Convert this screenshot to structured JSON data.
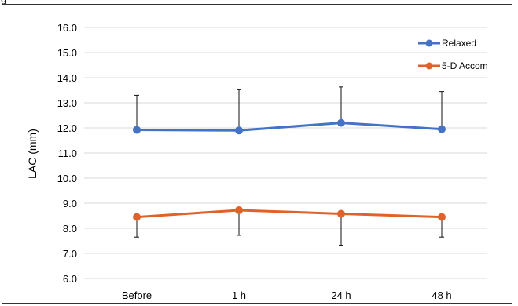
{
  "header": {
    "fragment": "g"
  },
  "chart_data": {
    "type": "line",
    "title": "",
    "xlabel": "",
    "ylabel": "LAC  (mm)",
    "categories": [
      "Before",
      "1 h",
      "24 h",
      "48 h"
    ],
    "ylim": [
      6.0,
      16.0
    ],
    "yticks": [
      "6.0",
      "7.0",
      "8.0",
      "9.0",
      "10.0",
      "11.0",
      "12.0",
      "13.0",
      "14.0",
      "15.0",
      "16.0"
    ],
    "grid": true,
    "legend_position": "top-right",
    "series": [
      {
        "name": "Relaxed",
        "color": "#4472c4",
        "values": [
          11.92,
          11.9,
          12.2,
          11.95
        ],
        "error": [
          1.38,
          1.62,
          1.43,
          1.5
        ]
      },
      {
        "name": "5-D Accom",
        "color": "#e0622a",
        "values": [
          8.45,
          8.72,
          8.58,
          8.45
        ],
        "error": [
          0.8,
          1.0,
          1.25,
          0.8
        ]
      }
    ]
  }
}
